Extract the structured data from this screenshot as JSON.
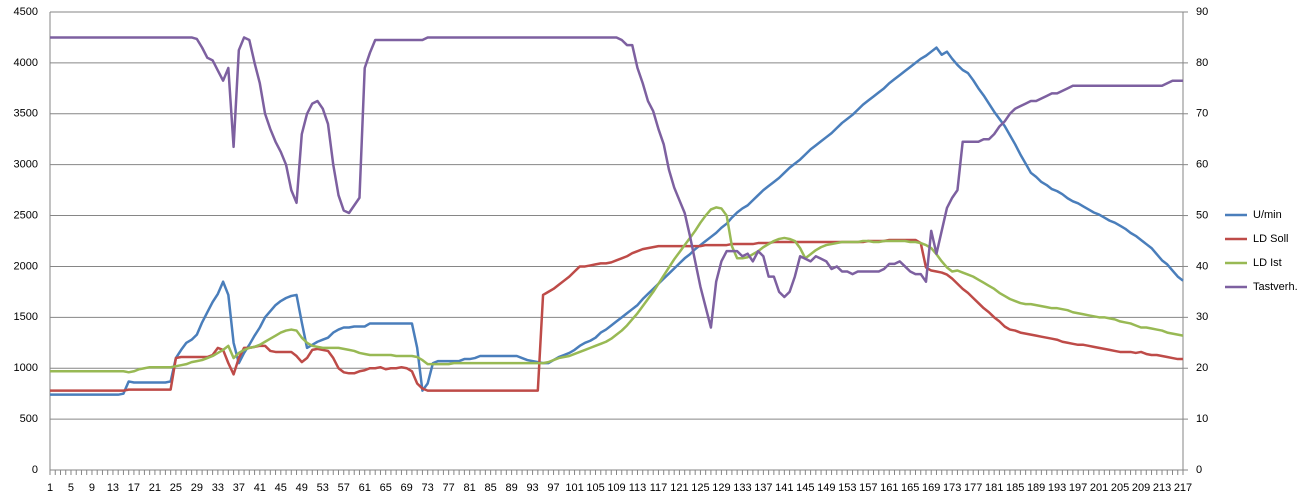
{
  "chart_data": {
    "type": "line",
    "categories": [
      1,
      null,
      null,
      null,
      5,
      null,
      null,
      null,
      9,
      null,
      null,
      null,
      13,
      null,
      null,
      null,
      17,
      null,
      null,
      null,
      21,
      null,
      null,
      null,
      25,
      null,
      null,
      null,
      29,
      null,
      null,
      null,
      33,
      null,
      null,
      null,
      37,
      null,
      null,
      null,
      41,
      null,
      null,
      null,
      45,
      null,
      null,
      null,
      49,
      null,
      null,
      null,
      53,
      null,
      null,
      null,
      57,
      null,
      null,
      null,
      61,
      null,
      null,
      null,
      65,
      null,
      null,
      null,
      69,
      null,
      null,
      null,
      73,
      null,
      null,
      null,
      77,
      null,
      null,
      null,
      81,
      null,
      null,
      null,
      85,
      null,
      null,
      null,
      89,
      null,
      null,
      null,
      93,
      null,
      null,
      null,
      97,
      null,
      null,
      null,
      101,
      null,
      null,
      null,
      105,
      null,
      null,
      null,
      109,
      null,
      null,
      null,
      113,
      null,
      null,
      null,
      117,
      null,
      null,
      null,
      121,
      null,
      null,
      null,
      125,
      null,
      null,
      null,
      129,
      null,
      null,
      null,
      133,
      null,
      null,
      null,
      137,
      null,
      null,
      null,
      141,
      null,
      null,
      null,
      145,
      null,
      null,
      null,
      149,
      null,
      null,
      null,
      153,
      null,
      null,
      null,
      157,
      null,
      null,
      null,
      161,
      null,
      null,
      null,
      165,
      null,
      null,
      null,
      169,
      null,
      null,
      null,
      173,
      null,
      null,
      null,
      177,
      null,
      null,
      null,
      181,
      null,
      null,
      null,
      185,
      null,
      null,
      null,
      189,
      null,
      null,
      null,
      193,
      null,
      null,
      null,
      197,
      null,
      null,
      null,
      201,
      null,
      null,
      null,
      205,
      null,
      null,
      null,
      209,
      null,
      null,
      null,
      213,
      null,
      null,
      null,
      217
    ],
    "series": [
      {
        "name": "U/min",
        "color": "#4a7ebb",
        "values": [
          740,
          740,
          740,
          740,
          740,
          740,
          740,
          740,
          740,
          740,
          740,
          740,
          740,
          740,
          750,
          870,
          860,
          860,
          860,
          860,
          860,
          860,
          860,
          870,
          1100,
          1180,
          1250,
          1280,
          1330,
          1450,
          1550,
          1650,
          1730,
          1850,
          1720,
          1250,
          1050,
          1150,
          1230,
          1320,
          1400,
          1500,
          1560,
          1620,
          1660,
          1690,
          1710,
          1720,
          1450,
          1200,
          1230,
          1260,
          1280,
          1300,
          1350,
          1380,
          1400,
          1400,
          1410,
          1410,
          1410,
          1440,
          1440,
          1440,
          1440,
          1440,
          1440,
          1440,
          1440,
          1440,
          1200,
          780,
          850,
          1050,
          1070,
          1070,
          1070,
          1070,
          1070,
          1090,
          1090,
          1100,
          1120,
          1120,
          1120,
          1120,
          1120,
          1120,
          1120,
          1120,
          1100,
          1080,
          1070,
          1060,
          1050,
          1050,
          1080,
          1110,
          1130,
          1150,
          1180,
          1220,
          1250,
          1270,
          1300,
          1350,
          1380,
          1420,
          1460,
          1500,
          1540,
          1580,
          1620,
          1680,
          1730,
          1780,
          1830,
          1880,
          1930,
          1980,
          2030,
          2080,
          2120,
          2170,
          2210,
          2250,
          2290,
          2330,
          2380,
          2420,
          2480,
          2530,
          2570,
          2600,
          2650,
          2700,
          2750,
          2790,
          2830,
          2870,
          2920,
          2970,
          3010,
          3050,
          3100,
          3150,
          3190,
          3230,
          3270,
          3310,
          3360,
          3410,
          3450,
          3490,
          3540,
          3590,
          3630,
          3670,
          3710,
          3750,
          3800,
          3840,
          3880,
          3920,
          3960,
          4000,
          4040,
          4070,
          4110,
          4150,
          4080,
          4110,
          4040,
          3980,
          3930,
          3900,
          3830,
          3750,
          3680,
          3600,
          3520,
          3450,
          3380,
          3290,
          3200,
          3100,
          3010,
          2920,
          2880,
          2830,
          2800,
          2760,
          2740,
          2710,
          2670,
          2640,
          2620,
          2590,
          2560,
          2530,
          2510,
          2480,
          2450,
          2430,
          2400,
          2370,
          2330,
          2300,
          2260,
          2220,
          2180,
          2120,
          2060,
          2020,
          1960,
          1900,
          1860
        ]
      },
      {
        "name": "LD Soll",
        "color": "#be4b48",
        "values": [
          780,
          780,
          780,
          780,
          780,
          780,
          780,
          780,
          780,
          780,
          780,
          780,
          780,
          780,
          780,
          790,
          790,
          790,
          790,
          790,
          790,
          790,
          790,
          790,
          1100,
          1110,
          1110,
          1110,
          1110,
          1110,
          1110,
          1130,
          1200,
          1180,
          1050,
          940,
          1100,
          1200,
          1200,
          1210,
          1220,
          1220,
          1170,
          1160,
          1160,
          1160,
          1160,
          1120,
          1060,
          1100,
          1180,
          1190,
          1180,
          1170,
          1100,
          1000,
          960,
          950,
          950,
          970,
          980,
          1000,
          1000,
          1010,
          990,
          1000,
          1000,
          1010,
          1000,
          970,
          850,
          800,
          780,
          780,
          780,
          780,
          780,
          780,
          780,
          780,
          780,
          780,
          780,
          780,
          780,
          780,
          780,
          780,
          780,
          780,
          780,
          780,
          780,
          780,
          1720,
          1750,
          1780,
          1820,
          1860,
          1900,
          1950,
          2000,
          2000,
          2010,
          2020,
          2030,
          2030,
          2040,
          2060,
          2080,
          2100,
          2130,
          2150,
          2170,
          2180,
          2190,
          2200,
          2200,
          2200,
          2200,
          2200,
          2200,
          2200,
          2200,
          2200,
          2210,
          2210,
          2210,
          2210,
          2210,
          2220,
          2220,
          2220,
          2220,
          2220,
          2230,
          2230,
          2230,
          2240,
          2240,
          2240,
          2240,
          2240,
          2240,
          2240,
          2240,
          2240,
          2240,
          2240,
          2240,
          2240,
          2240,
          2240,
          2240,
          2240,
          2240,
          2250,
          2250,
          2250,
          2250,
          2260,
          2260,
          2260,
          2260,
          2260,
          2260,
          2230,
          1990,
          1960,
          1950,
          1940,
          1920,
          1880,
          1830,
          1780,
          1740,
          1690,
          1640,
          1590,
          1550,
          1500,
          1460,
          1410,
          1380,
          1370,
          1350,
          1340,
          1330,
          1320,
          1310,
          1300,
          1290,
          1280,
          1260,
          1250,
          1240,
          1230,
          1230,
          1220,
          1210,
          1200,
          1190,
          1180,
          1170,
          1160,
          1160,
          1160,
          1150,
          1160,
          1140,
          1130,
          1130,
          1120,
          1110,
          1100,
          1090,
          1090
        ]
      },
      {
        "name": "LD Ist",
        "color": "#98b954",
        "values": [
          970,
          970,
          970,
          970,
          970,
          970,
          970,
          970,
          970,
          970,
          970,
          970,
          970,
          970,
          970,
          960,
          970,
          990,
          1000,
          1010,
          1010,
          1010,
          1010,
          1010,
          1020,
          1030,
          1040,
          1060,
          1070,
          1080,
          1100,
          1120,
          1150,
          1180,
          1220,
          1100,
          1150,
          1180,
          1200,
          1210,
          1230,
          1260,
          1290,
          1320,
          1350,
          1370,
          1380,
          1370,
          1300,
          1250,
          1220,
          1210,
          1200,
          1200,
          1200,
          1200,
          1190,
          1180,
          1170,
          1150,
          1140,
          1130,
          1130,
          1130,
          1130,
          1130,
          1120,
          1120,
          1120,
          1120,
          1110,
          1080,
          1040,
          1040,
          1040,
          1040,
          1040,
          1050,
          1050,
          1050,
          1050,
          1050,
          1050,
          1050,
          1050,
          1050,
          1050,
          1050,
          1050,
          1050,
          1050,
          1050,
          1050,
          1050,
          1050,
          1060,
          1080,
          1100,
          1110,
          1120,
          1140,
          1160,
          1180,
          1200,
          1220,
          1240,
          1260,
          1290,
          1330,
          1370,
          1420,
          1480,
          1540,
          1610,
          1680,
          1750,
          1830,
          1910,
          1990,
          2070,
          2140,
          2210,
          2280,
          2350,
          2430,
          2500,
          2560,
          2580,
          2570,
          2500,
          2200,
          2080,
          2080,
          2090,
          2120,
          2150,
          2190,
          2220,
          2250,
          2270,
          2280,
          2270,
          2250,
          2180,
          2080,
          2120,
          2160,
          2190,
          2210,
          2220,
          2230,
          2240,
          2240,
          2240,
          2240,
          2250,
          2250,
          2240,
          2240,
          2250,
          2250,
          2250,
          2250,
          2250,
          2240,
          2240,
          2230,
          2210,
          2180,
          2120,
          2050,
          1990,
          1950,
          1960,
          1940,
          1920,
          1900,
          1870,
          1840,
          1810,
          1780,
          1740,
          1710,
          1680,
          1660,
          1640,
          1630,
          1630,
          1620,
          1610,
          1600,
          1590,
          1590,
          1580,
          1570,
          1550,
          1540,
          1530,
          1520,
          1510,
          1500,
          1500,
          1490,
          1480,
          1460,
          1450,
          1440,
          1420,
          1400,
          1400,
          1390,
          1380,
          1370,
          1350,
          1340,
          1330,
          1320
        ]
      },
      {
        "name": "Tastverh.",
        "color": "#7d60a0",
        "axis": "y2",
        "values": [
          85,
          85,
          85,
          85,
          85,
          85,
          85,
          85,
          85,
          85,
          85,
          85,
          85,
          85,
          85,
          85,
          85,
          85,
          85,
          85,
          85,
          85,
          85,
          85,
          85,
          85,
          85,
          85,
          84.7,
          83,
          81,
          80.5,
          78.5,
          76.5,
          79,
          63.5,
          82.5,
          85,
          84.5,
          80,
          76,
          70,
          67,
          64.5,
          62.5,
          60,
          55,
          52.5,
          66,
          70,
          72,
          72.5,
          71,
          68,
          60,
          54,
          51,
          50.5,
          52,
          53.5,
          79,
          82,
          84.5,
          84.5,
          84.5,
          84.5,
          84.5,
          84.5,
          84.5,
          84.5,
          84.5,
          84.5,
          85,
          85,
          85,
          85,
          85,
          85,
          85,
          85,
          85,
          85,
          85,
          85,
          85,
          85,
          85,
          85,
          85,
          85,
          85,
          85,
          85,
          85,
          85,
          85,
          85,
          85,
          85,
          85,
          85,
          85,
          85,
          85,
          85,
          85,
          85,
          85,
          85,
          84.5,
          83.5,
          83.5,
          79,
          76,
          72.5,
          70.5,
          67,
          64,
          59,
          55.5,
          53,
          50.5,
          46,
          41,
          36,
          32,
          28,
          37,
          41,
          43,
          43,
          43,
          42,
          42.5,
          41,
          43,
          42,
          38,
          38,
          35,
          34,
          35,
          38,
          42,
          41.5,
          41,
          42,
          41.5,
          41,
          39.5,
          40,
          39,
          39,
          38.5,
          39,
          39,
          39,
          39,
          39,
          39.5,
          40.5,
          40.5,
          41,
          40,
          39,
          38.5,
          38.5,
          37,
          47,
          42.5,
          47,
          51.5,
          53.5,
          55,
          64.5,
          64.5,
          64.5,
          64.5,
          65,
          65,
          66,
          67.5,
          68.5,
          70,
          71,
          71.5,
          72,
          72.5,
          72.5,
          73,
          73.5,
          74,
          74,
          74.5,
          75,
          75.5,
          75.5,
          75.5,
          75.5,
          75.5,
          75.5,
          75.5,
          75.5,
          75.5,
          75.5,
          75.5,
          75.5,
          75.5,
          75.5,
          75.5,
          75.5,
          75.5,
          75.5,
          76,
          76.5,
          76.5,
          76.5
        ]
      }
    ],
    "ylim": [
      0,
      4500
    ],
    "yticks": [
      0,
      500,
      1000,
      1500,
      2000,
      2500,
      3000,
      3500,
      4000,
      4500
    ],
    "y2lim": [
      0,
      90
    ],
    "y2ticks": [
      0,
      10,
      20,
      30,
      40,
      50,
      60,
      70,
      80,
      90
    ],
    "grid": true,
    "legend": "right"
  }
}
